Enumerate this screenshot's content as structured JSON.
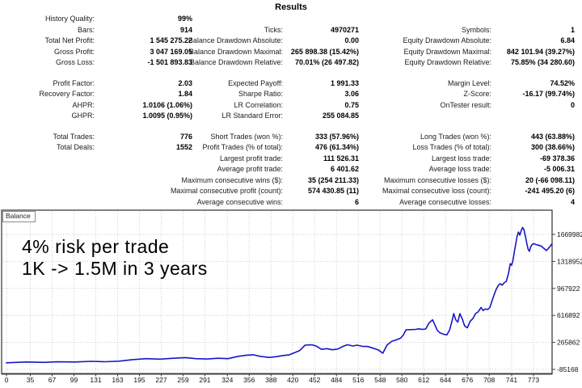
{
  "page_title": "Results",
  "stats": {
    "sections": [
      {
        "rows": [
          [
            {
              "l": "History Quality:",
              "v": "99%"
            },
            null,
            null
          ],
          [
            {
              "l": "Bars:",
              "v": "914"
            },
            {
              "l": "Ticks:",
              "v": "4970271"
            },
            {
              "l": "Symbols:",
              "v": "1"
            }
          ],
          [
            {
              "l": "Total Net Profit:",
              "v": "1 545 275.22"
            },
            {
              "l": "Balance Drawdown Absolute:",
              "v": "0.00"
            },
            {
              "l": "Equity Drawdown Absolute:",
              "v": "6.84"
            }
          ],
          [
            {
              "l": "Gross Profit:",
              "v": "3 047 169.05"
            },
            {
              "l": "Balance Drawdown Maximal:",
              "v": "265 898.38 (15.42%)"
            },
            {
              "l": "Equity Drawdown Maximal:",
              "v": "842 101.94 (39.27%)"
            }
          ],
          [
            {
              "l": "Gross Loss:",
              "v": "-1 501 893.83"
            },
            {
              "l": "Balance Drawdown Relative:",
              "v": "70.01% (26 497.82)"
            },
            {
              "l": "Equity Drawdown Relative:",
              "v": "75.85% (34 280.60)"
            }
          ]
        ]
      },
      {
        "rows": [
          [
            {
              "l": "Profit Factor:",
              "v": "2.03"
            },
            {
              "l": "Expected Payoff:",
              "v": "1 991.33"
            },
            {
              "l": "Margin Level:",
              "v": "74.52%"
            }
          ],
          [
            {
              "l": "Recovery Factor:",
              "v": "1.84"
            },
            {
              "l": "Sharpe Ratio:",
              "v": "3.06"
            },
            {
              "l": "Z-Score:",
              "v": "-16.17 (99.74%)"
            }
          ],
          [
            {
              "l": "AHPR:",
              "v": "1.0106 (1.06%)"
            },
            {
              "l": "LR Correlation:",
              "v": "0.75"
            },
            {
              "l": "OnTester result:",
              "v": "0"
            }
          ],
          [
            {
              "l": "GHPR:",
              "v": "1.0095 (0.95%)"
            },
            {
              "l": "LR Standard Error:",
              "v": "255 084.85"
            },
            null
          ]
        ]
      },
      {
        "rows": [
          [
            {
              "l": "Total Trades:",
              "v": "776"
            },
            {
              "l": "Short Trades (won %):",
              "v": "333 (57.96%)"
            },
            {
              "l": "Long Trades (won %):",
              "v": "443 (63.88%)"
            }
          ],
          [
            {
              "l": "Total Deals:",
              "v": "1552"
            },
            {
              "l": "Profit Trades (% of total):",
              "v": "476 (61.34%)"
            },
            {
              "l": "Loss Trades (% of total):",
              "v": "300 (38.66%)"
            }
          ],
          [
            null,
            {
              "l": "Largest profit trade:",
              "v": "111 526.31"
            },
            {
              "l": "Largest loss trade:",
              "v": "-69 378.36"
            }
          ],
          [
            null,
            {
              "l": "Average profit trade:",
              "v": "6 401.62"
            },
            {
              "l": "Average loss trade:",
              "v": "-5 006.31"
            }
          ],
          [
            null,
            {
              "l": "Maximum consecutive wins ($):",
              "v": "35 (254 211.33)"
            },
            {
              "l": "Maximum consecutive losses ($):",
              "v": "20 (-66 098.11)"
            }
          ],
          [
            null,
            {
              "l": "Maximal consecutive profit (count):",
              "v": "574 430.85 (11)"
            },
            {
              "l": "Maximal consecutive loss (count):",
              "v": "-241 495.20 (6)"
            }
          ],
          [
            null,
            {
              "l": "Average consecutive wins:",
              "v": "6"
            },
            {
              "l": "Average consecutive losses:",
              "v": "4"
            }
          ]
        ]
      }
    ]
  },
  "chart_data": {
    "type": "line",
    "title": "Balance",
    "legend_position": "top-left",
    "grid": true,
    "line_color": "#1616c8",
    "annotations": [
      "4% risk per trade",
      "1K -> 1.5M in 3 years"
    ],
    "x_ticks": [
      0,
      35,
      67,
      99,
      131,
      163,
      195,
      227,
      259,
      291,
      324,
      356,
      388,
      420,
      452,
      484,
      516,
      548,
      580,
      612,
      644,
      676,
      708,
      741,
      773
    ],
    "y_ticks": [
      -85168,
      265862,
      616892,
      967922,
      1318952,
      1669982
    ],
    "series": [
      {
        "name": "Balance",
        "x": [
          0,
          30,
          55,
          75,
          100,
          125,
          145,
          165,
          185,
          205,
          225,
          245,
          262,
          278,
          295,
          310,
          325,
          340,
          352,
          362,
          372,
          385,
          395,
          405,
          415,
          422,
          430,
          438,
          448,
          455,
          462,
          470,
          478,
          486,
          494,
          500,
          508,
          514,
          522,
          530,
          538,
          545,
          552,
          558,
          565,
          572,
          578,
          582,
          586,
          592,
          600,
          605,
          610,
          615,
          620,
          625,
          628,
          632,
          636,
          642,
          646,
          650,
          654,
          656,
          659,
          662,
          665,
          669,
          672,
          676,
          680,
          684,
          688,
          692,
          696,
          699,
          702,
          706,
          709,
          712,
          715,
          718,
          721,
          724,
          727,
          730,
          733,
          736,
          739,
          741,
          743,
          745,
          747,
          749,
          751,
          753,
          755,
          757,
          759,
          761,
          763,
          765,
          767,
          769,
          771,
          773,
          776,
          780,
          784,
          788,
          792,
          796,
          800
        ],
        "y": [
          1000,
          12000,
          6000,
          14000,
          11000,
          20000,
          15000,
          22000,
          42000,
          55000,
          48000,
          60000,
          68000,
          55000,
          50000,
          60000,
          55000,
          85000,
          100000,
          105000,
          85000,
          70000,
          80000,
          95000,
          105000,
          130000,
          160000,
          230000,
          235000,
          215000,
          175000,
          185000,
          170000,
          180000,
          215000,
          235000,
          220000,
          230000,
          215000,
          212000,
          190000,
          170000,
          125000,
          230000,
          280000,
          300000,
          320000,
          360000,
          430000,
          432000,
          435000,
          442000,
          435000,
          440000,
          520000,
          560000,
          500000,
          420000,
          390000,
          370000,
          365000,
          430000,
          560000,
          640000,
          560000,
          530000,
          640000,
          560000,
          480000,
          455000,
          540000,
          575000,
          640000,
          665000,
          720000,
          680000,
          700000,
          695000,
          720000,
          800000,
          880000,
          950000,
          1000000,
          1030000,
          1010000,
          1040000,
          1060000,
          1150000,
          1290000,
          1270000,
          1340000,
          1450000,
          1550000,
          1650000,
          1700000,
          1660000,
          1720000,
          1760000,
          1730000,
          1650000,
          1560000,
          1480000,
          1450000,
          1510000,
          1540000,
          1550000,
          1540000,
          1530000,
          1520000,
          1490000,
          1460000,
          1500000,
          1546275
        ]
      }
    ]
  }
}
